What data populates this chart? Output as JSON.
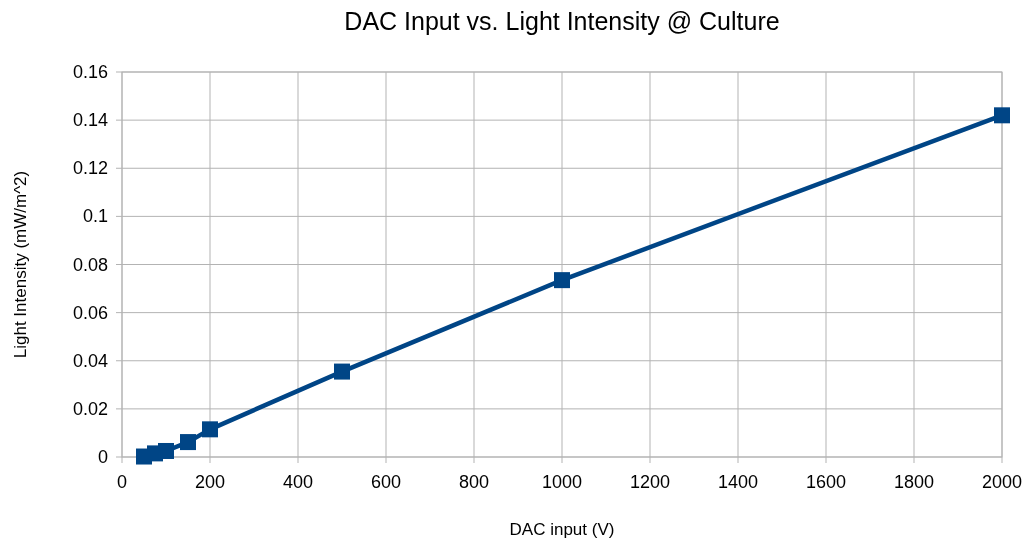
{
  "chart_data": {
    "type": "line",
    "title": "DAC Input vs. Light Intensity @ Culture",
    "xlabel": "DAC input (V)",
    "ylabel": "Light Intensity (mW/m^2)",
    "x": [
      50,
      75,
      100,
      150,
      200,
      500,
      1000,
      2000
    ],
    "series": [
      {
        "color": "#004586",
        "values": [
          0.0002,
          0.0015,
          0.0025,
          0.0062,
          0.0115,
          0.0355,
          0.0735,
          0.142
        ]
      }
    ],
    "xlim": [
      0,
      2000
    ],
    "xticks": [
      0,
      200,
      400,
      600,
      800,
      1000,
      1200,
      1400,
      1600,
      1800,
      2000
    ],
    "ylim": [
      0,
      0.16
    ],
    "yticks": [
      0,
      0.02,
      0.04,
      0.06,
      0.08,
      0.1,
      0.12,
      0.14,
      0.16
    ],
    "grid": true,
    "marker": "square",
    "line_style": "solid"
  }
}
